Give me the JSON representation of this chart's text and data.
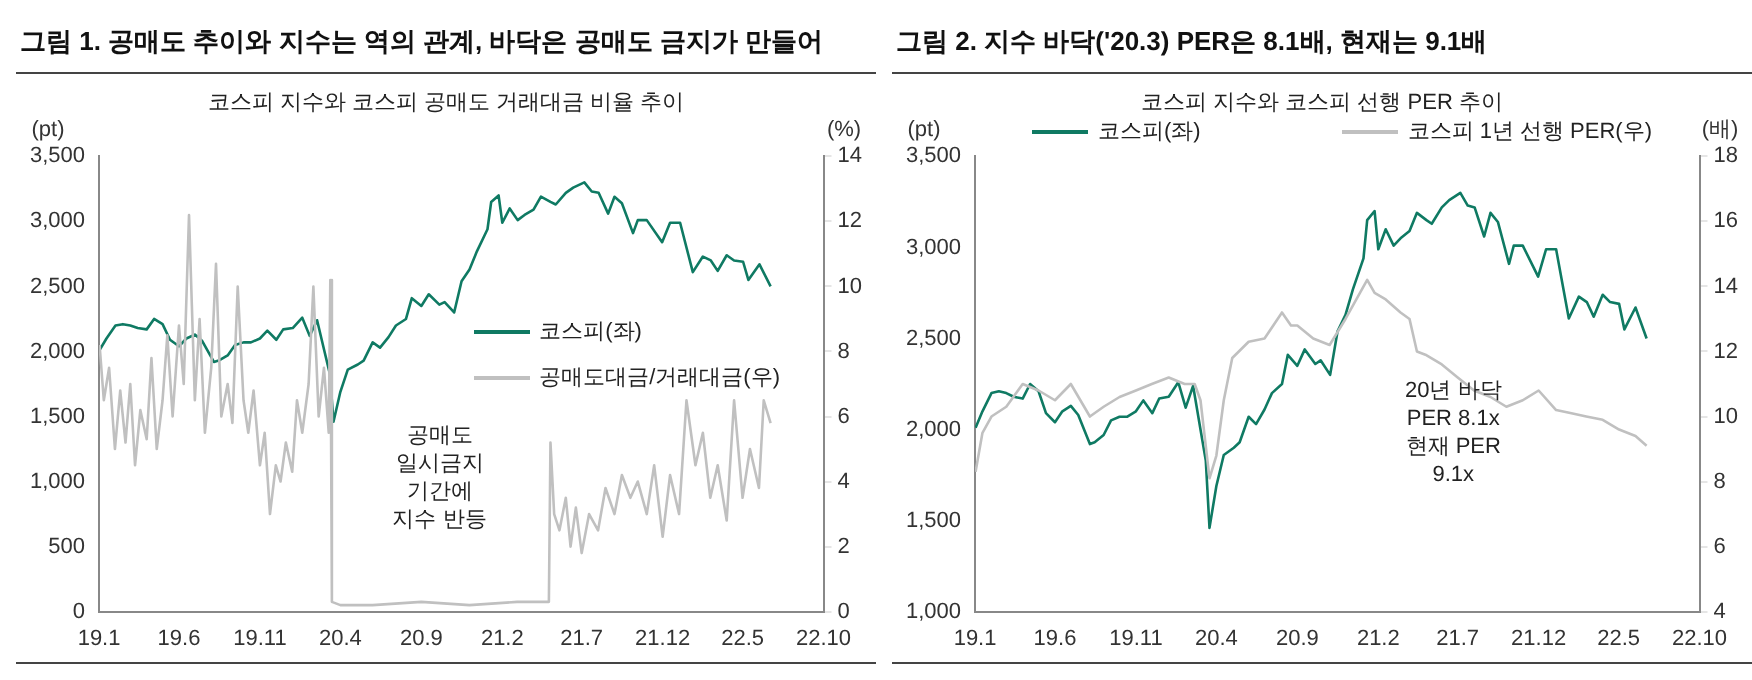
{
  "chart_data": [
    {
      "type": "line",
      "title": "그림 1. 공매도 추이와 지수는 역의 관계, 바닥은 공매도 금지가 만들어",
      "subtitle": "코스피 지수와 코스피 공매도 거래대금 비율 추이",
      "ylabel": "(pt)",
      "y2label": "(%)",
      "xlim": [
        "2019-01",
        "2022-10"
      ],
      "xticks": [
        {
          "value": "2019-01",
          "label": "19.1"
        },
        {
          "value": "2019-06",
          "label": "19.6"
        },
        {
          "value": "2019-11",
          "label": "19.11"
        },
        {
          "value": "2020-04",
          "label": "20.4"
        },
        {
          "value": "2020-09",
          "label": "20.9"
        },
        {
          "value": "2021-02",
          "label": "21.2"
        },
        {
          "value": "2021-07",
          "label": "21.7"
        },
        {
          "value": "2021-12",
          "label": "21.12"
        },
        {
          "value": "2022-05",
          "label": "22.5"
        },
        {
          "value": "2022-10",
          "label": "22.10"
        }
      ],
      "ylim": [
        0,
        3500
      ],
      "yticks": [
        0,
        500,
        {
          "value": 1000,
          "label": "1,000"
        },
        {
          "value": 1500,
          "label": "1,500"
        },
        {
          "value": 2000,
          "label": "2,000"
        },
        {
          "value": 2500,
          "label": "2,500"
        },
        {
          "value": 3000,
          "label": "3,000"
        },
        {
          "value": 3500,
          "label": "3,500"
        }
      ],
      "y2lim": [
        0,
        14
      ],
      "y2ticks": [
        0,
        2,
        4,
        6,
        8,
        10,
        12,
        14
      ],
      "grid": false,
      "legend": "right",
      "marker": "none",
      "line_style": "solid",
      "annotations": [
        "공매도\n일시금지\n기간에\n지수 반등"
      ],
      "series": [
        {
          "name": "공매도대금/거래대금(우)",
          "color": "#c0c0c0",
          "axis": "y2",
          "x": [
            "2019-01-02",
            "2019-01-10",
            "2019-01-20",
            "2019-01-31",
            "2019-02-10",
            "2019-02-20",
            "2019-03-01",
            "2019-03-10",
            "2019-03-20",
            "2019-04-01",
            "2019-04-10",
            "2019-04-20",
            "2019-05-01",
            "2019-05-10",
            "2019-05-20",
            "2019-06-01",
            "2019-06-10",
            "2019-06-20",
            "2019-07-01",
            "2019-07-10",
            "2019-07-20",
            "2019-08-01",
            "2019-08-10",
            "2019-08-20",
            "2019-09-01",
            "2019-09-10",
            "2019-09-20",
            "2019-10-01",
            "2019-10-10",
            "2019-10-20",
            "2019-11-01",
            "2019-11-10",
            "2019-11-20",
            "2019-12-01",
            "2019-12-10",
            "2019-12-20",
            "2020-01-01",
            "2020-01-10",
            "2020-01-20",
            "2020-02-01",
            "2020-02-10",
            "2020-02-20",
            "2020-03-01",
            "2020-03-10",
            "2020-03-13",
            "2020-03-16",
            "2020-04-01",
            "2020-06-01",
            "2020-09-01",
            "2020-12-01",
            "2021-03-01",
            "2021-04-30",
            "2021-05-03",
            "2021-05-10",
            "2021-05-20",
            "2021-06-01",
            "2021-06-10",
            "2021-06-20",
            "2021-07-01",
            "2021-07-15",
            "2021-08-01",
            "2021-08-15",
            "2021-09-01",
            "2021-09-15",
            "2021-10-01",
            "2021-10-15",
            "2021-11-01",
            "2021-11-15",
            "2021-12-01",
            "2021-12-15",
            "2022-01-01",
            "2022-01-15",
            "2022-02-01",
            "2022-02-15",
            "2022-03-01",
            "2022-03-15",
            "2022-04-01",
            "2022-04-15",
            "2022-05-01",
            "2022-05-15",
            "2022-06-01",
            "2022-06-10",
            "2022-06-23"
          ],
          "values": [
            8.2,
            6.5,
            7.5,
            5.0,
            6.8,
            5.2,
            7.0,
            4.5,
            6.2,
            5.3,
            7.8,
            5.0,
            6.5,
            8.5,
            6.0,
            8.8,
            7.0,
            12.2,
            6.5,
            9.0,
            5.5,
            7.5,
            10.7,
            6.0,
            7.0,
            5.8,
            10.0,
            6.5,
            5.5,
            6.8,
            4.5,
            5.5,
            3.0,
            4.5,
            4.0,
            5.2,
            4.3,
            6.5,
            5.5,
            7.0,
            10.0,
            6.0,
            7.5,
            5.5,
            10.2,
            0.3,
            0.2,
            0.2,
            0.3,
            0.2,
            0.3,
            0.3,
            5.2,
            3.0,
            2.5,
            3.5,
            2.0,
            3.2,
            1.8,
            3.0,
            2.5,
            3.8,
            3.0,
            4.2,
            3.5,
            4.0,
            3.0,
            4.5,
            2.3,
            4.2,
            3.0,
            6.5,
            4.5,
            5.5,
            3.5,
            4.5,
            2.8,
            6.5,
            3.5,
            5.0,
            3.8,
            6.5,
            5.8
          ]
        },
        {
          "name": "코스피(좌)",
          "color": "#0f7a63",
          "x": [
            "2019-01-02",
            "2019-01-15",
            "2019-02-01",
            "2019-02-15",
            "2019-03-01",
            "2019-03-15",
            "2019-04-01",
            "2019-04-15",
            "2019-05-01",
            "2019-05-15",
            "2019-06-01",
            "2019-06-15",
            "2019-07-01",
            "2019-07-15",
            "2019-08-06",
            "2019-08-15",
            "2019-09-01",
            "2019-09-15",
            "2019-10-01",
            "2019-10-15",
            "2019-11-01",
            "2019-11-15",
            "2019-12-02",
            "2019-12-15",
            "2020-01-02",
            "2020-01-20",
            "2020-02-03",
            "2020-02-17",
            "2020-03-02",
            "2020-03-12",
            "2020-03-19",
            "2020-04-01",
            "2020-04-15",
            "2020-05-04",
            "2020-05-15",
            "2020-06-01",
            "2020-06-15",
            "2020-07-01",
            "2020-07-15",
            "2020-08-03",
            "2020-08-14",
            "2020-09-01",
            "2020-09-15",
            "2020-10-05",
            "2020-10-15",
            "2020-11-02",
            "2020-11-16",
            "2020-12-01",
            "2020-12-15",
            "2021-01-04",
            "2021-01-11",
            "2021-01-25",
            "2021-02-01",
            "2021-02-15",
            "2021-03-02",
            "2021-03-15",
            "2021-04-01",
            "2021-04-15",
            "2021-05-03",
            "2021-05-13",
            "2021-06-01",
            "2021-06-15",
            "2021-07-06",
            "2021-07-20",
            "2021-08-02",
            "2021-08-20",
            "2021-09-01",
            "2021-09-15",
            "2021-10-06",
            "2021-10-15",
            "2021-11-01",
            "2021-11-30",
            "2021-12-15",
            "2022-01-03",
            "2022-01-27",
            "2022-02-15",
            "2022-03-02",
            "2022-03-15",
            "2022-04-01",
            "2022-04-15",
            "2022-05-02",
            "2022-05-12",
            "2022-06-02",
            "2022-06-23"
          ],
          "values": [
            2010,
            2100,
            2200,
            2210,
            2200,
            2180,
            2170,
            2250,
            2210,
            2090,
            2040,
            2100,
            2130,
            2080,
            1920,
            1930,
            1970,
            2050,
            2070,
            2070,
            2100,
            2160,
            2090,
            2170,
            2180,
            2260,
            2120,
            2240,
            2000,
            1830,
            1460,
            1690,
            1860,
            1900,
            1930,
            2070,
            2030,
            2110,
            2200,
            2250,
            2410,
            2350,
            2440,
            2360,
            2380,
            2300,
            2540,
            2630,
            2770,
            2940,
            3150,
            3200,
            2990,
            3100,
            3010,
            3050,
            3090,
            3190,
            3150,
            3130,
            3220,
            3260,
            3300,
            3230,
            3220,
            3060,
            3190,
            3140,
            2910,
            3010,
            3010,
            2840,
            2990,
            2990,
            2610,
            2730,
            2700,
            2620,
            2740,
            2700,
            2690,
            2550,
            2670,
            2500
          ]
        }
      ]
    },
    {
      "type": "line",
      "title": "그림 2. 지수 바닥('20.3) PER은 8.1배, 현재는 9.1배",
      "subtitle": "코스피 지수와 코스피 선행 PER 추이",
      "ylabel": "(pt)",
      "y2label": "(배)",
      "xlim": [
        "2019-01",
        "2022-10"
      ],
      "xticks": [
        {
          "value": "2019-01",
          "label": "19.1"
        },
        {
          "value": "2019-06",
          "label": "19.6"
        },
        {
          "value": "2019-11",
          "label": "19.11"
        },
        {
          "value": "2020-04",
          "label": "20.4"
        },
        {
          "value": "2020-09",
          "label": "20.9"
        },
        {
          "value": "2021-02",
          "label": "21.2"
        },
        {
          "value": "2021-07",
          "label": "21.7"
        },
        {
          "value": "2021-12",
          "label": "21.12"
        },
        {
          "value": "2022-05",
          "label": "22.5"
        },
        {
          "value": "2022-10",
          "label": "22.10"
        }
      ],
      "ylim": [
        1000,
        3500
      ],
      "yticks": [
        {
          "value": 1000,
          "label": "1,000"
        },
        {
          "value": 1500,
          "label": "1,500"
        },
        {
          "value": 2000,
          "label": "2,000"
        },
        {
          "value": 2500,
          "label": "2,500"
        },
        {
          "value": 3000,
          "label": "3,000"
        },
        {
          "value": 3500,
          "label": "3,500"
        }
      ],
      "y2lim": [
        4,
        18
      ],
      "y2ticks": [
        4,
        6,
        8,
        10,
        12,
        14,
        16,
        18
      ],
      "grid": false,
      "legend": "top",
      "marker": "none",
      "line_style": "solid",
      "annotations": [
        "20년 바닥\nPER 8.1x\n현재 PER\n9.1x"
      ],
      "series": [
        {
          "name": "코스피 1년 선행 PER(우)",
          "color": "#c0c0c0",
          "axis": "y2",
          "x": [
            "2019-01-02",
            "2019-01-15",
            "2019-02-01",
            "2019-03-01",
            "2019-04-01",
            "2019-05-01",
            "2019-06-01",
            "2019-07-01",
            "2019-08-06",
            "2019-09-01",
            "2019-10-01",
            "2019-11-01",
            "2019-12-01",
            "2020-01-02",
            "2020-02-01",
            "2020-02-20",
            "2020-03-02",
            "2020-03-19",
            "2020-04-01",
            "2020-04-15",
            "2020-05-01",
            "2020-06-01",
            "2020-07-01",
            "2020-08-03",
            "2020-08-20",
            "2020-09-01",
            "2020-10-01",
            "2020-11-01",
            "2020-12-01",
            "2021-01-11",
            "2021-01-25",
            "2021-02-15",
            "2021-03-15",
            "2021-04-01",
            "2021-04-15",
            "2021-05-01",
            "2021-06-01",
            "2021-07-01",
            "2021-08-01",
            "2021-09-01",
            "2021-10-01",
            "2021-11-01",
            "2021-12-01",
            "2022-01-03",
            "2022-02-01",
            "2022-03-01",
            "2022-04-01",
            "2022-05-02",
            "2022-06-02",
            "2022-06-23"
          ],
          "values": [
            8.3,
            9.5,
            10.0,
            10.3,
            11.0,
            10.8,
            10.5,
            11.0,
            10.0,
            10.3,
            10.6,
            10.8,
            11.0,
            11.2,
            11.0,
            11.0,
            10.5,
            8.1,
            8.8,
            10.5,
            11.8,
            12.3,
            12.4,
            13.2,
            12.8,
            12.8,
            12.4,
            12.2,
            13.0,
            14.2,
            13.8,
            13.6,
            13.2,
            13.0,
            12.0,
            11.9,
            11.6,
            11.2,
            10.8,
            10.6,
            10.3,
            10.5,
            10.8,
            10.2,
            10.1,
            10.0,
            9.9,
            9.6,
            9.4,
            9.1
          ]
        },
        {
          "name": "코스피(좌)",
          "color": "#0f7a63",
          "x": [
            "2019-01-02",
            "2019-01-15",
            "2019-02-01",
            "2019-02-15",
            "2019-03-01",
            "2019-03-15",
            "2019-04-01",
            "2019-04-15",
            "2019-05-01",
            "2019-05-15",
            "2019-06-01",
            "2019-06-15",
            "2019-07-01",
            "2019-07-15",
            "2019-08-06",
            "2019-08-15",
            "2019-09-01",
            "2019-09-15",
            "2019-10-01",
            "2019-10-15",
            "2019-11-01",
            "2019-11-15",
            "2019-12-02",
            "2019-12-15",
            "2020-01-02",
            "2020-01-20",
            "2020-02-03",
            "2020-02-17",
            "2020-03-02",
            "2020-03-12",
            "2020-03-19",
            "2020-04-01",
            "2020-04-15",
            "2020-05-04",
            "2020-05-15",
            "2020-06-01",
            "2020-06-15",
            "2020-07-01",
            "2020-07-15",
            "2020-08-03",
            "2020-08-14",
            "2020-09-01",
            "2020-09-15",
            "2020-10-05",
            "2020-10-15",
            "2020-11-02",
            "2020-11-16",
            "2020-12-01",
            "2020-12-15",
            "2021-01-04",
            "2021-01-11",
            "2021-01-25",
            "2021-02-01",
            "2021-02-15",
            "2021-03-02",
            "2021-03-15",
            "2021-04-01",
            "2021-04-15",
            "2021-05-03",
            "2021-05-13",
            "2021-06-01",
            "2021-06-15",
            "2021-07-06",
            "2021-07-20",
            "2021-08-02",
            "2021-08-20",
            "2021-09-01",
            "2021-09-15",
            "2021-10-06",
            "2021-10-15",
            "2021-11-01",
            "2021-11-30",
            "2021-12-15",
            "2022-01-03",
            "2022-01-27",
            "2022-02-15",
            "2022-03-02",
            "2022-03-15",
            "2022-04-01",
            "2022-04-15",
            "2022-05-02",
            "2022-05-12",
            "2022-06-02",
            "2022-06-23"
          ],
          "values": [
            2010,
            2100,
            2200,
            2210,
            2200,
            2180,
            2170,
            2250,
            2210,
            2090,
            2040,
            2100,
            2130,
            2080,
            1920,
            1930,
            1970,
            2050,
            2070,
            2070,
            2100,
            2160,
            2090,
            2170,
            2180,
            2260,
            2120,
            2240,
            2000,
            1830,
            1460,
            1690,
            1860,
            1900,
            1930,
            2070,
            2030,
            2110,
            2200,
            2250,
            2410,
            2350,
            2440,
            2360,
            2380,
            2300,
            2540,
            2630,
            2770,
            2940,
            3150,
            3200,
            2990,
            3100,
            3010,
            3050,
            3090,
            3190,
            3150,
            3130,
            3220,
            3260,
            3300,
            3230,
            3220,
            3060,
            3190,
            3140,
            2910,
            3010,
            3010,
            2840,
            2990,
            2990,
            2610,
            2730,
            2700,
            2620,
            2740,
            2700,
            2690,
            2550,
            2670,
            2500
          ]
        }
      ]
    }
  ]
}
